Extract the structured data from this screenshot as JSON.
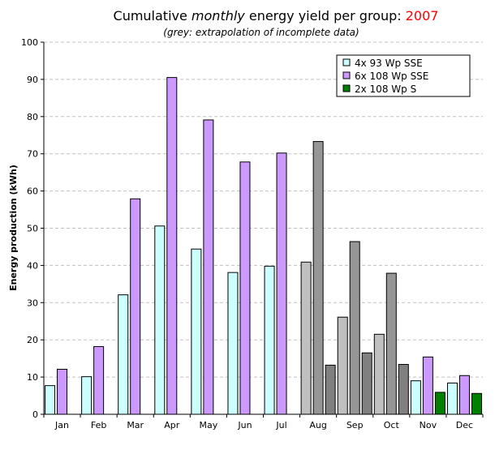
{
  "chart_data": {
    "type": "bar",
    "title_part1": "Cumulative ",
    "title_italic": "monthly",
    "title_part2": " energy yield per group: ",
    "title_year": "2007",
    "subtitle": "(grey: extrapolation of incomplete data)",
    "ylabel": "Energy production (kWh)",
    "xlabel": "",
    "ylim": [
      0,
      100
    ],
    "yticks": [
      0,
      10,
      20,
      30,
      40,
      50,
      60,
      70,
      80,
      90,
      100
    ],
    "grid": true,
    "legend_position": "top-right",
    "categories": [
      "Jan",
      "Feb",
      "Mar",
      "Apr",
      "May",
      "Jun",
      "Jul",
      "Aug",
      "Sep",
      "Oct",
      "Nov",
      "Dec"
    ],
    "extrapolated_months": [
      "Aug",
      "Sep",
      "Oct"
    ],
    "series": [
      {
        "name": "4x 93 Wp SSE",
        "color": "#ccffff",
        "grey_color": "#c0c0c0",
        "values": [
          7.7,
          10.1,
          32.1,
          50.6,
          44.4,
          38.1,
          39.8,
          40.9,
          26.1,
          21.5,
          9.0,
          8.4
        ]
      },
      {
        "name": "6x 108 Wp SSE",
        "color": "#cc99ff",
        "grey_color": "#969696",
        "values": [
          12.1,
          18.2,
          57.9,
          90.5,
          79.1,
          67.8,
          70.2,
          73.3,
          46.4,
          37.9,
          15.4,
          10.4
        ]
      },
      {
        "name": "2x 108 Wp S",
        "color": "#008000",
        "grey_color": "#808080",
        "values": [
          null,
          null,
          null,
          null,
          null,
          null,
          null,
          13.2,
          16.5,
          13.4,
          5.9,
          5.6
        ]
      }
    ],
    "title_year_color": "#ff0000"
  }
}
